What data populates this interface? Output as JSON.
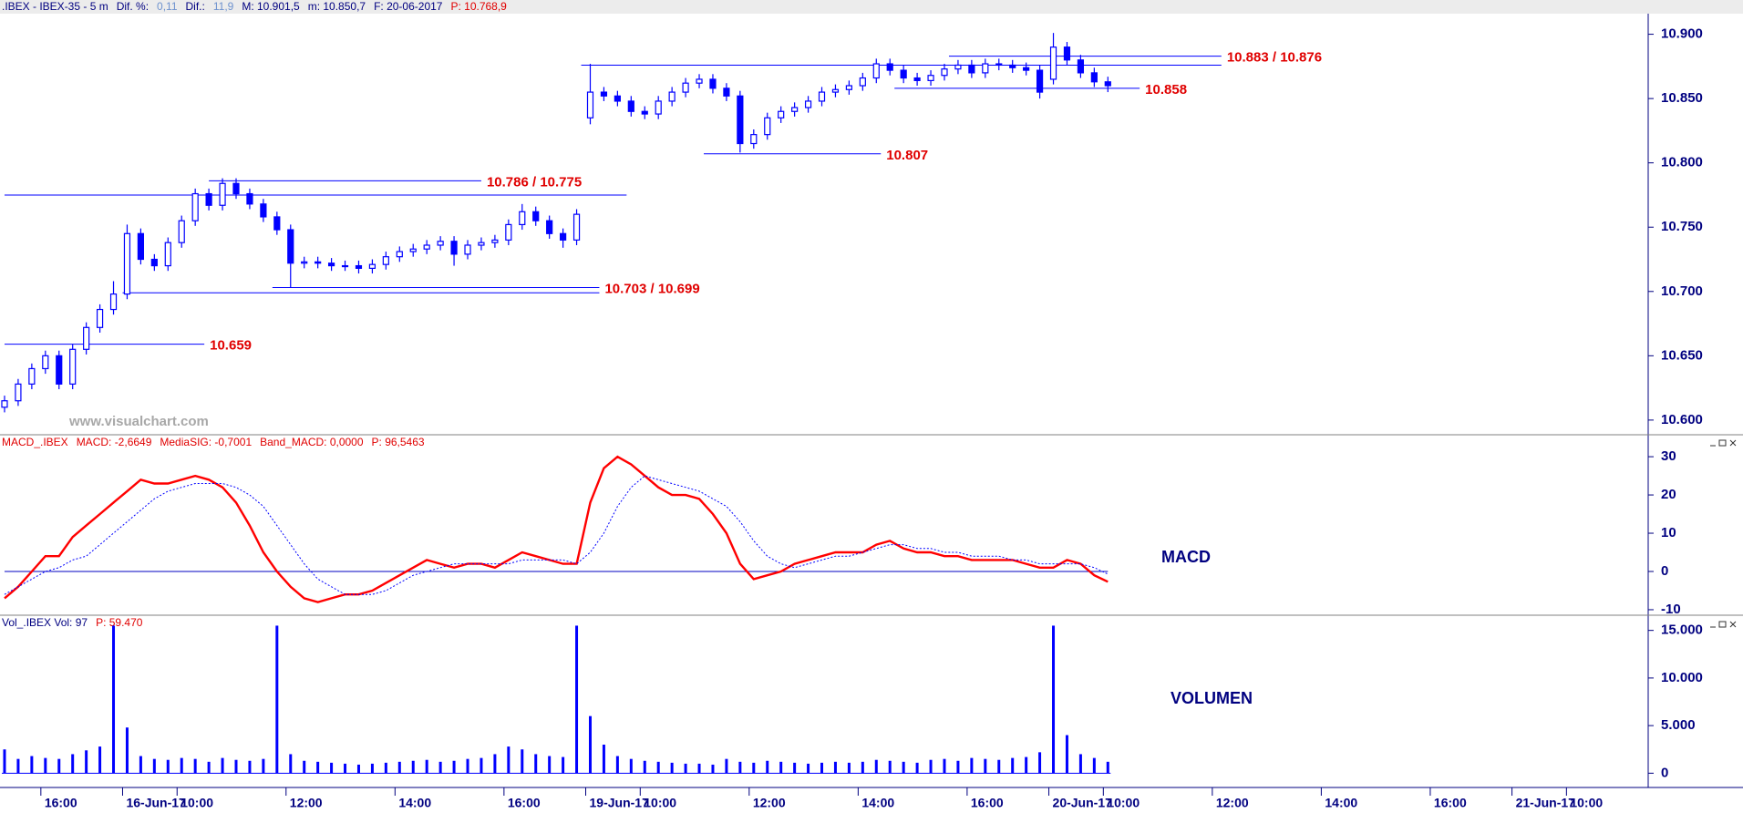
{
  "header": {
    "segments": [
      {
        "text": ".IBEX - IBEX-35 -  5 m",
        "color": "#000080"
      },
      {
        "text": "Dif. %:",
        "color": "#000080"
      },
      {
        "text": "0,11",
        "color": "#6f93cf"
      },
      {
        "text": "Dif.:",
        "color": "#000080"
      },
      {
        "text": "11,9",
        "color": "#6f93cf"
      },
      {
        "text": "M: 10.901,5",
        "color": "#000080"
      },
      {
        "text": "m: 10.850,7",
        "color": "#000080"
      },
      {
        "text": "F: 20-06-2017",
        "color": "#000080"
      },
      {
        "text": "P: 10.768,9",
        "color": "#e00000"
      }
    ]
  },
  "watermark": "www.visualchart.com",
  "chart_data": [
    {
      "type": "candlestick",
      "color": "#0000ff",
      "x": [
        0,
        3,
        6,
        9,
        12,
        15,
        18,
        21,
        24,
        27,
        30,
        33,
        36,
        39,
        42,
        45,
        48,
        51,
        54,
        57,
        60,
        63,
        66,
        69,
        72,
        75,
        78,
        81,
        84,
        87,
        90,
        93,
        96,
        99,
        102,
        105,
        108,
        111,
        114,
        117,
        120,
        123,
        126,
        129,
        132,
        135,
        138,
        141,
        144,
        147,
        150,
        153,
        156,
        159,
        162,
        165,
        168,
        171,
        174,
        177,
        180,
        183,
        186,
        189,
        192,
        195,
        198,
        201,
        204,
        207,
        210,
        213,
        216,
        219,
        222,
        225,
        228,
        231,
        234,
        237,
        240,
        243
      ],
      "open": [
        10610,
        10615,
        10628,
        10640,
        10650,
        10628,
        10655,
        10672,
        10686,
        10698,
        10745,
        10725,
        10720,
        10738,
        10755,
        10776,
        10767,
        10784,
        10776,
        10768,
        10758,
        10748,
        10722,
        10723,
        10722,
        10720,
        10720,
        10718,
        10721,
        10727,
        10731,
        10733,
        10736,
        10739,
        10729,
        10736,
        10738,
        10740,
        10752,
        10762,
        10755,
        10745,
        10740,
        10835,
        10855,
        10852,
        10848,
        10840,
        10838,
        10848,
        10855,
        10862,
        10865,
        10858,
        10852,
        10815,
        10822,
        10835,
        10840,
        10843,
        10848,
        10855,
        10857,
        10860,
        10866,
        10877,
        10872,
        10866,
        10864,
        10868,
        10873,
        10876,
        10870,
        10877,
        10876,
        10874,
        10872,
        10865,
        10890,
        10880,
        10870,
        10863
      ],
      "high": [
        10619,
        10632,
        10644,
        10654,
        10654,
        10659,
        10676,
        10690,
        10708,
        10752,
        10749,
        10729,
        10742,
        10759,
        10780,
        10780,
        10788,
        10788,
        10780,
        10772,
        10762,
        10752,
        10727,
        10727,
        10726,
        10724,
        10724,
        10725,
        10731,
        10735,
        10737,
        10740,
        10743,
        10743,
        10740,
        10742,
        10744,
        10756,
        10768,
        10766,
        10759,
        10749,
        10764,
        10877,
        10859,
        10856,
        10852,
        10844,
        10852,
        10859,
        10866,
        10869,
        10869,
        10862,
        10856,
        10826,
        10839,
        10844,
        10847,
        10852,
        10859,
        10861,
        10864,
        10870,
        10881,
        10881,
        10876,
        10870,
        10872,
        10877,
        10880,
        10880,
        10881,
        10881,
        10880,
        10878,
        10876,
        10901,
        10894,
        10884,
        10874,
        10867
      ],
      "low": [
        10606,
        10611,
        10624,
        10636,
        10624,
        10624,
        10651,
        10668,
        10682,
        10694,
        10721,
        10716,
        10716,
        10734,
        10751,
        10763,
        10763,
        10772,
        10764,
        10754,
        10744,
        10703,
        10718,
        10718,
        10716,
        10716,
        10714,
        10714,
        10717,
        10723,
        10727,
        10729,
        10732,
        10720,
        10725,
        10732,
        10734,
        10736,
        10748,
        10751,
        10741,
        10734,
        10736,
        10830,
        10848,
        10844,
        10836,
        10834,
        10834,
        10844,
        10851,
        10858,
        10854,
        10848,
        10808,
        10811,
        10818,
        10831,
        10836,
        10839,
        10844,
        10851,
        10853,
        10856,
        10862,
        10868,
        10862,
        10860,
        10860,
        10864,
        10869,
        10866,
        10866,
        10872,
        10870,
        10868,
        10850,
        10861,
        10876,
        10866,
        10859,
        10855
      ],
      "close": [
        10615,
        10628,
        10640,
        10650,
        10628,
        10655,
        10672,
        10686,
        10698,
        10745,
        10725,
        10720,
        10738,
        10755,
        10776,
        10767,
        10784,
        10776,
        10768,
        10758,
        10748,
        10722,
        10723,
        10722,
        10720,
        10720,
        10718,
        10721,
        10727,
        10731,
        10733,
        10736,
        10739,
        10729,
        10736,
        10738,
        10740,
        10752,
        10762,
        10755,
        10745,
        10740,
        10760,
        10855,
        10852,
        10848,
        10840,
        10838,
        10848,
        10855,
        10862,
        10865,
        10858,
        10852,
        10815,
        10822,
        10835,
        10840,
        10843,
        10848,
        10855,
        10857,
        10860,
        10866,
        10877,
        10872,
        10866,
        10864,
        10868,
        10873,
        10876,
        10870,
        10877,
        10876,
        10874,
        10872,
        10855,
        10890,
        10880,
        10870,
        10863,
        10860
      ],
      "xlim": [
        -1,
        362
      ],
      "ylim": [
        10590,
        10916
      ],
      "yticks": [
        {
          "value": 10600,
          "label": "10.600"
        },
        {
          "value": 10650,
          "label": "10.650"
        },
        {
          "value": 10700,
          "label": "10.700"
        },
        {
          "value": 10750,
          "label": "10.750"
        },
        {
          "value": 10800,
          "label": "10.800"
        },
        {
          "value": 10850,
          "label": "10.850"
        },
        {
          "value": 10900,
          "label": "10.900"
        }
      ],
      "level_color": "#0000ff",
      "label_color": "#e00000",
      "levels": [
        {
          "label": "10.786 / 10.775",
          "values": [
            10786,
            10775
          ]
        },
        {
          "label": "10.703 / 10.699",
          "values": [
            10703,
            10699
          ]
        },
        {
          "label": "10.659",
          "values": [
            10659
          ]
        },
        {
          "label": "10.807",
          "values": [
            10807
          ]
        },
        {
          "label": "10.883 / 10.876",
          "values": [
            10883,
            10876
          ]
        },
        {
          "label": "10.858",
          "values": [
            10858
          ]
        }
      ]
    },
    {
      "type": "line",
      "title": "MACD",
      "header": [
        {
          "text": "MACD_.IBEX",
          "color": "#e00000"
        },
        {
          "text": "MACD: -2,6649",
          "color": "#e00000"
        },
        {
          "text": "MediaSIG: -0,7001",
          "color": "#e00000"
        },
        {
          "text": "Band_MACD: 0,0000",
          "color": "#e00000"
        },
        {
          "text": "P: 96,5463",
          "color": "#e00000"
        }
      ],
      "x": [
        0,
        3,
        6,
        9,
        12,
        15,
        18,
        21,
        24,
        27,
        30,
        33,
        36,
        39,
        42,
        45,
        48,
        51,
        54,
        57,
        60,
        63,
        66,
        69,
        72,
        75,
        78,
        81,
        84,
        87,
        90,
        93,
        96,
        99,
        102,
        105,
        108,
        111,
        114,
        117,
        120,
        123,
        126,
        129,
        132,
        135,
        138,
        141,
        144,
        147,
        150,
        153,
        156,
        159,
        162,
        165,
        168,
        171,
        174,
        177,
        180,
        183,
        186,
        189,
        192,
        195,
        198,
        201,
        204,
        207,
        210,
        213,
        216,
        219,
        222,
        225,
        228,
        231,
        234,
        237,
        240,
        243
      ],
      "series": [
        {
          "color": "#ff0000",
          "dash": false,
          "values": [
            -7,
            -4,
            0,
            4,
            4,
            9,
            12,
            15,
            18,
            21,
            24,
            23,
            23,
            24,
            25,
            24,
            22,
            18,
            12,
            5,
            0,
            -4,
            -7,
            -8,
            -7,
            -6,
            -6,
            -5,
            -3,
            -1,
            1,
            3,
            2,
            1,
            2,
            2,
            1,
            3,
            5,
            4,
            3,
            2,
            2,
            18,
            27,
            30,
            28,
            25,
            22,
            20,
            20,
            19,
            15,
            10,
            2,
            -2,
            -1,
            0,
            2,
            3,
            4,
            5,
            5,
            5,
            7,
            8,
            6,
            5,
            5,
            4,
            4,
            3,
            3,
            3,
            3,
            2,
            1,
            1,
            3,
            2,
            -1,
            -2.7
          ]
        },
        {
          "color": "#0000ff",
          "dash": true,
          "values": [
            -6,
            -4,
            -2,
            0,
            1,
            3,
            4,
            7,
            10,
            13,
            16,
            19,
            21,
            22,
            23,
            23,
            23,
            22,
            20,
            17,
            12,
            7,
            2,
            -2,
            -4,
            -6,
            -6,
            -6,
            -5,
            -3,
            -1,
            0,
            1,
            2,
            2,
            2,
            2,
            2,
            3,
            3,
            3,
            3,
            2,
            5,
            10,
            17,
            22,
            25,
            24,
            23,
            22,
            21,
            19,
            17,
            13,
            8,
            4,
            2,
            1,
            2,
            3,
            4,
            4,
            5,
            6,
            7,
            7,
            6,
            6,
            5,
            5,
            4,
            4,
            4,
            3,
            3,
            2,
            2,
            2,
            2,
            1,
            -0.7
          ]
        }
      ],
      "xlim": [
        -1,
        362
      ],
      "ylim": [
        -11.2,
        35.5
      ],
      "yticks": [
        30,
        20,
        10,
        0,
        -10
      ]
    },
    {
      "type": "bar",
      "title": "VOLUMEN",
      "color": "#0000ff",
      "header": [
        {
          "text": "Vol_.IBEX Vol: 97",
          "color": "#000080"
        },
        {
          "text": "P: 59.470",
          "color": "#e00000"
        }
      ],
      "x": [
        0,
        3,
        6,
        9,
        12,
        15,
        18,
        21,
        24,
        27,
        30,
        33,
        36,
        39,
        42,
        45,
        48,
        51,
        54,
        57,
        60,
        63,
        66,
        69,
        72,
        75,
        78,
        81,
        84,
        87,
        90,
        93,
        96,
        99,
        102,
        105,
        108,
        111,
        114,
        117,
        120,
        123,
        126,
        129,
        132,
        135,
        138,
        141,
        144,
        147,
        150,
        153,
        156,
        159,
        162,
        165,
        168,
        171,
        174,
        177,
        180,
        183,
        186,
        189,
        192,
        195,
        198,
        201,
        204,
        207,
        210,
        213,
        216,
        219,
        222,
        225,
        228,
        231,
        234,
        237,
        240,
        243
      ],
      "values": [
        2500,
        1500,
        1800,
        1600,
        1500,
        2000,
        2400,
        2800,
        15500,
        4800,
        1800,
        1500,
        1400,
        1600,
        1500,
        1200,
        1600,
        1400,
        1300,
        1500,
        15500,
        2000,
        1300,
        1200,
        1100,
        1000,
        900,
        1000,
        1100,
        1200,
        1300,
        1400,
        1200,
        1300,
        1500,
        1600,
        2000,
        2800,
        2500,
        2000,
        1800,
        1700,
        15500,
        6000,
        3000,
        1800,
        1500,
        1300,
        1200,
        1100,
        1000,
        1000,
        900,
        1500,
        1200,
        1100,
        1300,
        1200,
        1100,
        1000,
        1100,
        1200,
        1100,
        1200,
        1400,
        1300,
        1200,
        1100,
        1400,
        1500,
        1300,
        1600,
        1500,
        1400,
        1600,
        1700,
        2200,
        15500,
        4000,
        2000,
        1600,
        1200
      ],
      "xlim": [
        -1,
        362
      ],
      "ylim": [
        -1500,
        16500
      ],
      "yticks": [
        {
          "value": 15000,
          "label": "15.000"
        },
        {
          "value": 10000,
          "label": "10.000"
        },
        {
          "value": 5000,
          "label": "5.000"
        },
        0
      ],
      "xticks": [
        {
          "value": 8,
          "label": "16:00"
        },
        {
          "value": 26,
          "label": "16-Jun-17"
        },
        {
          "value": 38,
          "label": "10:00"
        },
        {
          "value": 62,
          "label": "12:00"
        },
        {
          "value": 86,
          "label": "14:00"
        },
        {
          "value": 110,
          "label": "16:00"
        },
        {
          "value": 128,
          "label": "19-Jun-17"
        },
        {
          "value": 140,
          "label": "10:00"
        },
        {
          "value": 164,
          "label": "12:00"
        },
        {
          "value": 188,
          "label": "14:00"
        },
        {
          "value": 212,
          "label": "16:00"
        },
        {
          "value": 230,
          "label": "20-Jun-17"
        },
        {
          "value": 242,
          "label": "10:00"
        },
        {
          "value": 266,
          "label": "12:00"
        },
        {
          "value": 290,
          "label": "14:00"
        },
        {
          "value": 314,
          "label": "16:00"
        },
        {
          "value": 332,
          "label": "21-Jun-17"
        },
        {
          "value": 344,
          "label": "10:00"
        }
      ]
    }
  ]
}
